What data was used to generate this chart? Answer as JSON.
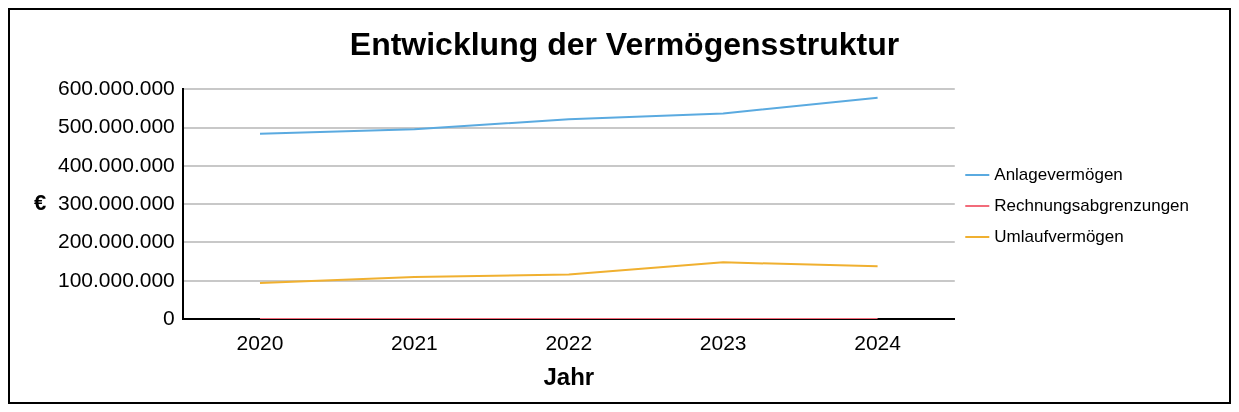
{
  "chart_data": {
    "type": "line",
    "title": "Entwicklung der Vermögensstruktur",
    "xlabel": "Jahr",
    "ylabel": "€",
    "categories": [
      "2020",
      "2021",
      "2022",
      "2023",
      "2024"
    ],
    "series": [
      {
        "name": "Anlagevermögen",
        "color": "#5aaae0",
        "values": [
          484000000,
          496000000,
          522000000,
          537000000,
          578000000
        ]
      },
      {
        "name": "Rechnungsabgrenzungen",
        "color": "#f26b7a",
        "values": [
          0,
          0,
          0,
          0,
          0
        ]
      },
      {
        "name": "Umlaufvermögen",
        "color": "#f0b030",
        "values": [
          94000000,
          110000000,
          116000000,
          148000000,
          138000000
        ]
      }
    ],
    "ylim": [
      0,
      600000000
    ],
    "yticks": [
      {
        "value": 0,
        "label": "0"
      },
      {
        "value": 100000000,
        "label": "100.000.000"
      },
      {
        "value": 200000000,
        "label": "200.000.000"
      },
      {
        "value": 300000000,
        "label": "300.000.000"
      },
      {
        "value": 400000000,
        "label": "400.000.000"
      },
      {
        "value": 500000000,
        "label": "500.000.000"
      },
      {
        "value": 600000000,
        "label": "600.000.000"
      }
    ],
    "grid": "y",
    "legend": "right",
    "marker": "none",
    "line_style": "solid"
  }
}
